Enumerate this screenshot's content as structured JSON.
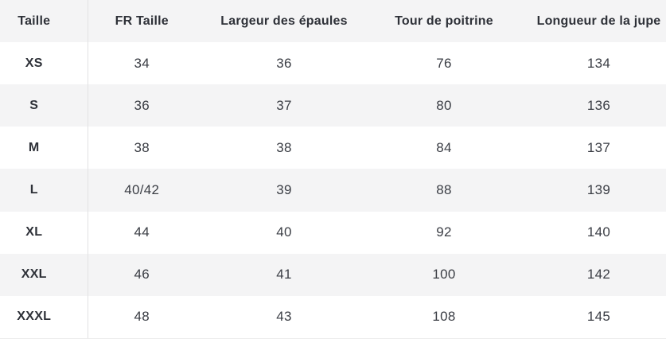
{
  "chart_data": {
    "type": "table",
    "title": "",
    "columns": [
      "Taille",
      "FR Taille",
      "Largeur des épaules",
      "Tour de poitrine",
      "Longueur de la jupe"
    ],
    "rows": [
      [
        "XS",
        "34",
        "36",
        "76",
        "134"
      ],
      [
        "S",
        "36",
        "37",
        "80",
        "136"
      ],
      [
        "M",
        "38",
        "38",
        "84",
        "137"
      ],
      [
        "L",
        "40/42",
        "39",
        "88",
        "139"
      ],
      [
        "XL",
        "44",
        "40",
        "92",
        "140"
      ],
      [
        "XXL",
        "46",
        "41",
        "100",
        "142"
      ],
      [
        "XXXL",
        "48",
        "43",
        "108",
        "145"
      ]
    ],
    "layout": {
      "striped": true,
      "stripe_rows": [
        "header",
        "S",
        "L",
        "XXL"
      ],
      "divider_after_first_column": true
    }
  },
  "colors": {
    "stripe_background": "#f4f4f5",
    "row_background": "#ffffff",
    "divider": "#e2e2e3",
    "header_text": "#2e3138",
    "cell_text": "#3a3d44",
    "bottom_hairline": "#ebebeb"
  }
}
